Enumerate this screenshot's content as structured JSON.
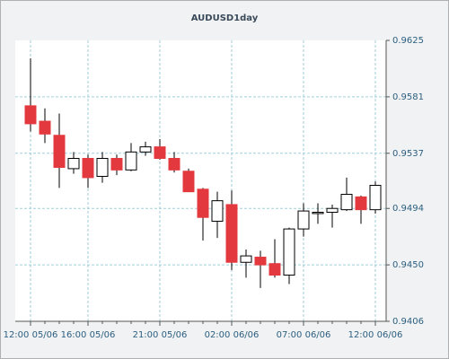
{
  "chart_data": {
    "type": "candlestick",
    "title": "AUDUSD1day",
    "categories": [
      "12:00 05/06",
      null,
      null,
      null,
      "16:00 05/06",
      null,
      null,
      null,
      null,
      "21:00 05/06",
      null,
      null,
      null,
      null,
      "02:00 06/06",
      null,
      null,
      null,
      null,
      "07:00 06/06",
      null,
      null,
      null,
      null,
      "12:00 06/06"
    ],
    "open": [
      0.9574,
      0.9562,
      0.9551,
      0.9525,
      0.9533,
      0.9519,
      0.9533,
      0.9524,
      0.9538,
      0.9542,
      0.9533,
      0.9523,
      0.9509,
      0.9484,
      0.9497,
      0.9452,
      0.9456,
      0.9451,
      0.9442,
      0.9478,
      0.949,
      0.9491,
      0.9493,
      0.9503,
      0.9493
    ],
    "high": [
      0.9611,
      0.9572,
      0.9568,
      0.9538,
      0.9536,
      0.9538,
      0.9536,
      0.9545,
      0.9546,
      0.9548,
      0.9538,
      0.9525,
      0.951,
      0.9507,
      0.9508,
      0.9462,
      0.9461,
      0.947,
      0.9479,
      0.9498,
      0.9498,
      0.9497,
      0.9518,
      0.9504,
      0.9515
    ],
    "low": [
      0.9554,
      0.9545,
      0.951,
      0.9521,
      0.951,
      0.9514,
      0.952,
      0.9523,
      0.9535,
      0.9532,
      0.9522,
      0.9507,
      0.9469,
      0.9471,
      0.9446,
      0.944,
      0.9432,
      0.944,
      0.9435,
      0.9472,
      0.9482,
      0.9479,
      0.9492,
      0.9482,
      0.949
    ],
    "close": [
      0.956,
      0.9552,
      0.9526,
      0.9533,
      0.9518,
      0.9533,
      0.9524,
      0.9538,
      0.9542,
      0.9533,
      0.9524,
      0.9507,
      0.9487,
      0.95,
      0.9452,
      0.9457,
      0.945,
      0.9442,
      0.9478,
      0.9492,
      0.9491,
      0.9494,
      0.9505,
      0.9493,
      0.9512
    ],
    "up_color": "#ffffff",
    "down_color": "#e3393e",
    "ylim": [
      0.9406,
      0.9625
    ],
    "yticks": [
      0.9406,
      {
        "value": 0.945,
        "label": "0.9450"
      },
      0.9494,
      0.9537,
      0.9581,
      0.9625
    ],
    "grid": true
  }
}
